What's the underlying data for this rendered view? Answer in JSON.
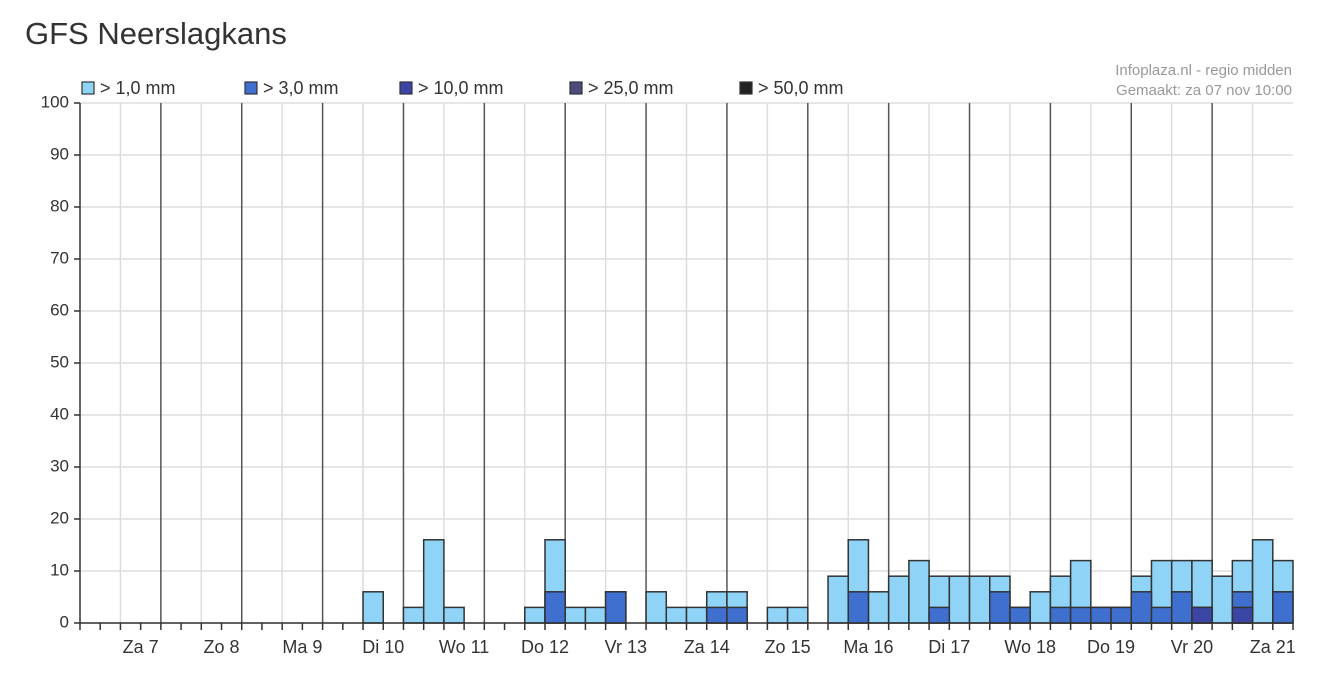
{
  "chart_data": {
    "type": "bar",
    "title": "GFS Neerslagkans",
    "source": "Infoplaza.nl - regio midden",
    "created": "Gemaakt: za 07 nov 10:00",
    "categories": [
      null,
      null,
      null,
      "Za 7",
      null,
      null,
      null,
      "Zo 8",
      null,
      null,
      null,
      "Ma 9",
      null,
      null,
      null,
      "Di 10",
      null,
      null,
      null,
      "Wo 11",
      null,
      null,
      null,
      "Do 12",
      null,
      null,
      null,
      "Vr 13",
      null,
      null,
      null,
      "Za 14",
      null,
      null,
      null,
      "Zo 15",
      null,
      null,
      null,
      "Ma 16",
      null,
      null,
      null,
      "Di 17",
      null,
      null,
      null,
      "Wo 18",
      null,
      null,
      null,
      "Do 19",
      null,
      null,
      null,
      "Vr 20",
      null,
      null,
      null,
      "Za 21"
    ],
    "series": [
      {
        "name": "> 1,0 mm",
        "color": "#8fd4f7",
        "values": [
          0,
          0,
          0,
          0,
          0,
          0,
          0,
          0,
          0,
          0,
          0,
          0,
          0,
          0,
          6,
          0,
          3,
          16,
          3,
          0,
          0,
          0,
          3,
          16,
          3,
          3,
          6,
          0,
          6,
          3,
          3,
          6,
          6,
          0,
          3,
          3,
          0,
          9,
          16,
          6,
          9,
          12,
          9,
          9,
          9,
          9,
          3,
          6,
          9,
          12,
          3,
          3,
          9,
          12,
          12,
          12,
          9,
          12,
          16,
          12
        ]
      },
      {
        "name": "> 3,0 mm",
        "color": "#3f70d0",
        "values": [
          0,
          0,
          0,
          0,
          0,
          0,
          0,
          0,
          0,
          0,
          0,
          0,
          0,
          0,
          0,
          0,
          0,
          0,
          0,
          0,
          0,
          0,
          0,
          6,
          0,
          0,
          6,
          0,
          0,
          0,
          0,
          3,
          3,
          0,
          0,
          0,
          0,
          0,
          6,
          0,
          0,
          0,
          3,
          0,
          0,
          6,
          3,
          0,
          3,
          3,
          3,
          3,
          6,
          3,
          6,
          3,
          0,
          6,
          0,
          6
        ]
      },
      {
        "name": "> 10,0 mm",
        "color": "#3a45a5",
        "values": [
          0,
          0,
          0,
          0,
          0,
          0,
          0,
          0,
          0,
          0,
          0,
          0,
          0,
          0,
          0,
          0,
          0,
          0,
          0,
          0,
          0,
          0,
          0,
          0,
          0,
          0,
          0,
          0,
          0,
          0,
          0,
          0,
          0,
          0,
          0,
          0,
          0,
          0,
          0,
          0,
          0,
          0,
          0,
          0,
          0,
          0,
          0,
          0,
          0,
          0,
          0,
          0,
          0,
          0,
          0,
          3,
          0,
          3,
          0,
          0
        ]
      },
      {
        "name": "> 25,0 mm",
        "color": "#4c4c7c",
        "values": [
          0,
          0,
          0,
          0,
          0,
          0,
          0,
          0,
          0,
          0,
          0,
          0,
          0,
          0,
          0,
          0,
          0,
          0,
          0,
          0,
          0,
          0,
          0,
          0,
          0,
          0,
          0,
          0,
          0,
          0,
          0,
          0,
          0,
          0,
          0,
          0,
          0,
          0,
          0,
          0,
          0,
          0,
          0,
          0,
          0,
          0,
          0,
          0,
          0,
          0,
          0,
          0,
          0,
          0,
          0,
          0,
          0,
          0,
          0,
          0
        ]
      },
      {
        "name": "> 50,0 mm",
        "color": "#222222",
        "values": [
          0,
          0,
          0,
          0,
          0,
          0,
          0,
          0,
          0,
          0,
          0,
          0,
          0,
          0,
          0,
          0,
          0,
          0,
          0,
          0,
          0,
          0,
          0,
          0,
          0,
          0,
          0,
          0,
          0,
          0,
          0,
          0,
          0,
          0,
          0,
          0,
          0,
          0,
          0,
          0,
          0,
          0,
          0,
          0,
          0,
          0,
          0,
          0,
          0,
          0,
          0,
          0,
          0,
          0,
          0,
          0,
          0,
          0,
          0,
          0
        ]
      }
    ],
    "ylim": [
      0,
      100
    ],
    "yticks": [
      0,
      10,
      20,
      30,
      40,
      50,
      60,
      70,
      80,
      90,
      100
    ],
    "grid": true
  }
}
